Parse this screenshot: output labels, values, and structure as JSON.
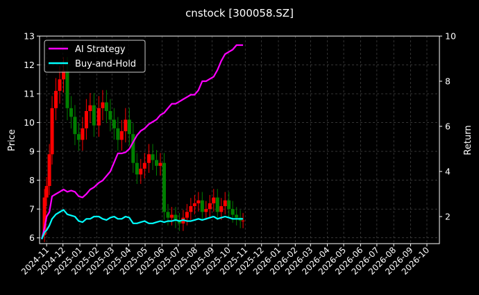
{
  "chart_data": {
    "type": "line",
    "title": "cnstock [300058.SZ]",
    "ylabel_left": "Price",
    "ylabel_right": "Return",
    "ylim_left": [
      5.8,
      13
    ],
    "ylim_right": [
      0.8,
      10
    ],
    "yticks_left": [
      6,
      7,
      8,
      9,
      10,
      11,
      12,
      13
    ],
    "yticks_right": [
      2,
      4,
      6,
      8,
      10
    ],
    "x_tick_labels": [
      "2024-11",
      "2024-12",
      "2025-01",
      "2025-02",
      "2025-03",
      "2025-04",
      "2025-05",
      "2025-06",
      "2025-07",
      "2025-08",
      "2025-09",
      "2025-10",
      "2025-11",
      "2025-12",
      "2026-01",
      "2026-02",
      "2026-03",
      "2026-04",
      "2026-05",
      "2026-06",
      "2026-07",
      "2026-08",
      "2026-09",
      "2026-10"
    ],
    "grid": true,
    "legend_position": "top-left",
    "colors": {
      "background": "#000000",
      "ai_strategy": "#ff00ff",
      "buy_and_hold": "#00ffff",
      "candle_up": "#ff0000",
      "candle_down": "#008000",
      "grid": "#555555"
    },
    "series": [
      {
        "name": "AI Strategy",
        "axis": "right",
        "x": [
          "2024-10-23",
          "2024-10-28",
          "2024-11-01",
          "2024-11-06",
          "2024-11-11",
          "2024-11-18",
          "2024-11-25",
          "2024-12-02",
          "2024-12-09",
          "2024-12-16",
          "2024-12-23",
          "2024-12-30",
          "2025-01-06",
          "2025-01-13",
          "2025-01-20",
          "2025-01-27",
          "2025-02-05",
          "2025-02-12",
          "2025-02-19",
          "2025-02-26",
          "2025-03-05",
          "2025-03-12",
          "2025-03-19",
          "2025-03-26",
          "2025-04-02",
          "2025-04-09",
          "2025-04-16",
          "2025-04-23",
          "2025-04-30",
          "2025-05-08",
          "2025-05-15",
          "2025-05-22",
          "2025-05-29",
          "2025-06-05",
          "2025-06-12",
          "2025-06-19",
          "2025-06-26",
          "2025-07-03",
          "2025-07-10",
          "2025-07-17",
          "2025-07-24",
          "2025-07-31",
          "2025-08-07",
          "2025-08-14",
          "2025-08-21",
          "2025-08-28",
          "2025-09-04",
          "2025-09-11",
          "2025-09-18",
          "2025-09-25",
          "2025-10-02",
          "2025-10-09",
          "2025-10-16",
          "2025-10-23",
          "2025-10-28"
        ],
        "values": [
          1.0,
          1.5,
          2.0,
          2.2,
          2.9,
          3.0,
          3.1,
          3.2,
          3.1,
          3.15,
          3.1,
          2.9,
          2.85,
          3.0,
          3.2,
          3.3,
          3.5,
          3.6,
          3.8,
          4.0,
          4.4,
          4.8,
          4.8,
          4.85,
          5.0,
          5.3,
          5.6,
          5.8,
          5.9,
          6.1,
          6.2,
          6.3,
          6.5,
          6.6,
          6.8,
          7.0,
          7.0,
          7.1,
          7.2,
          7.3,
          7.4,
          7.4,
          7.6,
          8.0,
          8.0,
          8.1,
          8.2,
          8.5,
          8.9,
          9.2,
          9.3,
          9.4,
          9.6,
          9.6,
          9.6
        ]
      },
      {
        "name": "Buy-and-Hold",
        "axis": "right",
        "x": [
          "2024-10-23",
          "2024-10-28",
          "2024-11-01",
          "2024-11-06",
          "2024-11-11",
          "2024-11-18",
          "2024-11-25",
          "2024-12-02",
          "2024-12-09",
          "2024-12-16",
          "2024-12-23",
          "2024-12-30",
          "2025-01-06",
          "2025-01-13",
          "2025-01-20",
          "2025-01-27",
          "2025-02-05",
          "2025-02-12",
          "2025-02-19",
          "2025-02-26",
          "2025-03-05",
          "2025-03-12",
          "2025-03-19",
          "2025-03-26",
          "2025-04-02",
          "2025-04-09",
          "2025-04-16",
          "2025-04-23",
          "2025-04-30",
          "2025-05-08",
          "2025-05-15",
          "2025-05-22",
          "2025-05-29",
          "2025-06-05",
          "2025-06-12",
          "2025-06-19",
          "2025-06-26",
          "2025-07-03",
          "2025-07-10",
          "2025-07-17",
          "2025-07-24",
          "2025-07-31",
          "2025-08-07",
          "2025-08-14",
          "2025-08-21",
          "2025-08-28",
          "2025-09-04",
          "2025-09-11",
          "2025-09-18",
          "2025-09-25",
          "2025-10-02",
          "2025-10-09",
          "2025-10-16",
          "2025-10-23",
          "2025-10-28"
        ],
        "values": [
          1.0,
          1.3,
          1.4,
          1.6,
          1.9,
          2.1,
          2.2,
          2.3,
          2.1,
          2.05,
          2.0,
          1.8,
          1.75,
          1.9,
          1.9,
          2.0,
          2.0,
          1.9,
          1.85,
          1.95,
          2.0,
          1.9,
          1.9,
          2.0,
          1.95,
          1.7,
          1.7,
          1.75,
          1.8,
          1.7,
          1.7,
          1.75,
          1.8,
          1.75,
          1.8,
          1.8,
          1.85,
          1.8,
          1.85,
          1.8,
          1.8,
          1.85,
          1.9,
          1.85,
          1.9,
          1.95,
          2.0,
          1.9,
          1.95,
          2.0,
          1.95,
          1.9,
          1.9,
          1.9,
          1.9
        ]
      },
      {
        "name": "",
        "type": "candlestick",
        "axis": "left",
        "x": [
          "2024-10-23",
          "2024-10-28",
          "2024-11-01",
          "2024-11-06",
          "2024-11-11",
          "2024-11-18",
          "2024-11-25",
          "2024-12-02",
          "2024-12-09",
          "2024-12-16",
          "2024-12-23",
          "2024-12-30",
          "2025-01-06",
          "2025-01-13",
          "2025-01-20",
          "2025-01-27",
          "2025-02-05",
          "2025-02-12",
          "2025-02-19",
          "2025-02-26",
          "2025-03-05",
          "2025-03-12",
          "2025-03-19",
          "2025-03-26",
          "2025-04-02",
          "2025-04-09",
          "2025-04-16",
          "2025-04-23",
          "2025-04-30",
          "2025-05-08",
          "2025-05-15",
          "2025-05-22",
          "2025-05-29",
          "2025-06-05",
          "2025-06-12",
          "2025-06-19",
          "2025-06-26",
          "2025-07-03",
          "2025-07-10",
          "2025-07-17",
          "2025-07-24",
          "2025-07-31",
          "2025-08-07",
          "2025-08-14",
          "2025-08-21",
          "2025-08-28",
          "2025-09-04",
          "2025-09-11",
          "2025-09-18",
          "2025-09-25",
          "2025-10-02",
          "2025-10-09",
          "2025-10-16",
          "2025-10-23",
          "2025-10-28"
        ],
        "values": [
          6.1,
          7.4,
          7.8,
          8.9,
          10.5,
          11.1,
          11.5,
          11.8,
          10.5,
          10.2,
          9.6,
          9.4,
          9.8,
          10.4,
          10.6,
          9.9,
          10.5,
          10.7,
          10.4,
          10.1,
          9.8,
          9.4,
          9.7,
          10.1,
          9.6,
          8.6,
          8.2,
          8.4,
          8.6,
          8.9,
          8.7,
          8.5,
          8.6,
          6.9,
          6.7,
          6.8,
          6.6,
          6.5,
          6.7,
          6.9,
          7.1,
          7.2,
          7.3,
          6.9,
          7.0,
          7.2,
          7.4,
          6.9,
          7.1,
          7.3,
          7.0,
          6.8,
          6.7,
          6.6,
          6.6
        ]
      }
    ]
  }
}
